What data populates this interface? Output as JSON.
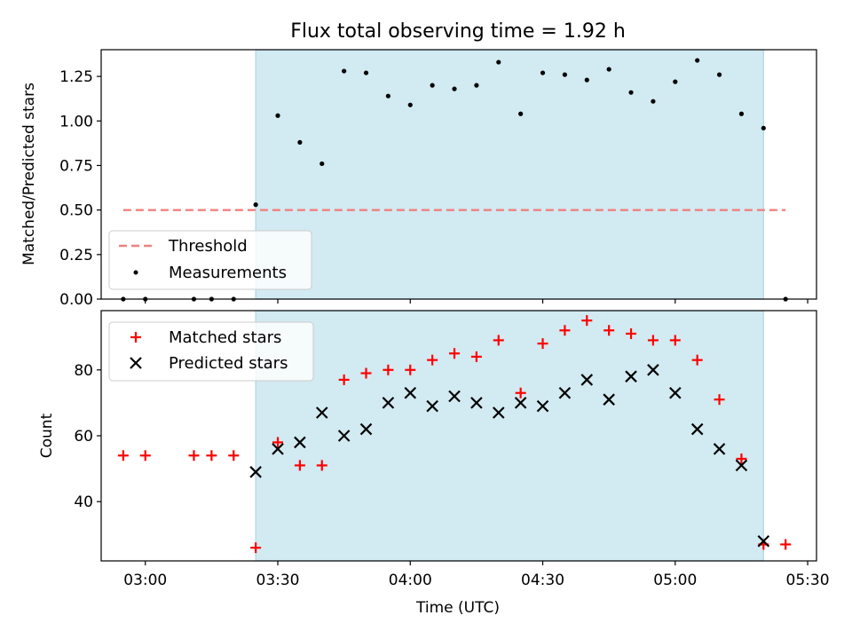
{
  "chart_data": [
    {
      "type": "scatter",
      "title": "Flux total observing time = 1.92 h",
      "xlabel": "",
      "ylabel": "Matched/Predicted stars",
      "xlim": [
        "02:50",
        "05:32"
      ],
      "ylim": [
        0,
        1.4
      ],
      "yticks": [
        "0.00",
        "0.25",
        "0.50",
        "0.75",
        "1.00",
        "1.25"
      ],
      "grid": false,
      "legend_position": "lower-left",
      "shaded_interval": [
        "03:25",
        "05:20"
      ],
      "shade_color": "#add8e6",
      "series": [
        {
          "name": "Threshold",
          "style": "dashed-line",
          "color": "#f08080",
          "points": [
            [
              "02:55",
              0.5
            ],
            [
              "05:25",
              0.5
            ]
          ]
        },
        {
          "name": "Measurements",
          "style": "dot",
          "color": "#000000",
          "points": [
            [
              "02:55",
              0.0
            ],
            [
              "03:00",
              0.0
            ],
            [
              "03:11",
              0.0
            ],
            [
              "03:15",
              0.0
            ],
            [
              "03:20",
              0.0
            ],
            [
              "03:25",
              0.53
            ],
            [
              "03:30",
              1.03
            ],
            [
              "03:35",
              0.88
            ],
            [
              "03:40",
              0.76
            ],
            [
              "03:45",
              1.28
            ],
            [
              "03:50",
              1.27
            ],
            [
              "03:55",
              1.14
            ],
            [
              "04:00",
              1.09
            ],
            [
              "04:05",
              1.2
            ],
            [
              "04:10",
              1.18
            ],
            [
              "04:15",
              1.2
            ],
            [
              "04:20",
              1.33
            ],
            [
              "04:25",
              1.04
            ],
            [
              "04:30",
              1.27
            ],
            [
              "04:35",
              1.26
            ],
            [
              "04:40",
              1.23
            ],
            [
              "04:45",
              1.29
            ],
            [
              "04:50",
              1.16
            ],
            [
              "04:55",
              1.11
            ],
            [
              "05:00",
              1.22
            ],
            [
              "05:05",
              1.34
            ],
            [
              "05:10",
              1.26
            ],
            [
              "05:15",
              1.04
            ],
            [
              "05:20",
              0.96
            ],
            [
              "05:25",
              0.0
            ]
          ]
        }
      ]
    },
    {
      "type": "scatter",
      "title": "",
      "xlabel": "Time (UTC)",
      "ylabel": "Count",
      "xlim": [
        "02:50",
        "05:32"
      ],
      "ylim": [
        22,
        98
      ],
      "yticks": [
        "40",
        "60",
        "80"
      ],
      "xticks": [
        "03:00",
        "03:30",
        "04:00",
        "04:30",
        "05:00",
        "05:30"
      ],
      "grid": false,
      "legend_position": "upper-left",
      "shaded_interval": [
        "03:25",
        "05:20"
      ],
      "shade_color": "#add8e6",
      "series": [
        {
          "name": "Matched stars",
          "style": "plus",
          "color": "#ff0000",
          "points": [
            [
              "02:55",
              54
            ],
            [
              "03:00",
              54
            ],
            [
              "03:11",
              54
            ],
            [
              "03:15",
              54
            ],
            [
              "03:20",
              54
            ],
            [
              "03:25",
              26
            ],
            [
              "03:30",
              58
            ],
            [
              "03:35",
              51
            ],
            [
              "03:40",
              51
            ],
            [
              "03:45",
              77
            ],
            [
              "03:50",
              79
            ],
            [
              "03:55",
              80
            ],
            [
              "04:00",
              80
            ],
            [
              "04:05",
              83
            ],
            [
              "04:10",
              85
            ],
            [
              "04:15",
              84
            ],
            [
              "04:20",
              89
            ],
            [
              "04:25",
              73
            ],
            [
              "04:30",
              88
            ],
            [
              "04:35",
              92
            ],
            [
              "04:40",
              95
            ],
            [
              "04:45",
              92
            ],
            [
              "04:50",
              91
            ],
            [
              "04:55",
              89
            ],
            [
              "05:00",
              89
            ],
            [
              "05:05",
              83
            ],
            [
              "05:10",
              71
            ],
            [
              "05:15",
              53
            ],
            [
              "05:20",
              27
            ],
            [
              "05:25",
              27
            ]
          ]
        },
        {
          "name": "Predicted stars",
          "style": "x",
          "color": "#000000",
          "points": [
            [
              "03:25",
              49
            ],
            [
              "03:30",
              56
            ],
            [
              "03:35",
              58
            ],
            [
              "03:40",
              67
            ],
            [
              "03:45",
              60
            ],
            [
              "03:50",
              62
            ],
            [
              "03:55",
              70
            ],
            [
              "04:00",
              73
            ],
            [
              "04:05",
              69
            ],
            [
              "04:10",
              72
            ],
            [
              "04:15",
              70
            ],
            [
              "04:20",
              67
            ],
            [
              "04:25",
              70
            ],
            [
              "04:30",
              69
            ],
            [
              "04:35",
              73
            ],
            [
              "04:40",
              77
            ],
            [
              "04:45",
              71
            ],
            [
              "04:50",
              78
            ],
            [
              "04:55",
              80
            ],
            [
              "05:00",
              73
            ],
            [
              "05:05",
              62
            ],
            [
              "05:10",
              56
            ],
            [
              "05:15",
              51
            ],
            [
              "05:20",
              28
            ]
          ]
        }
      ]
    }
  ]
}
